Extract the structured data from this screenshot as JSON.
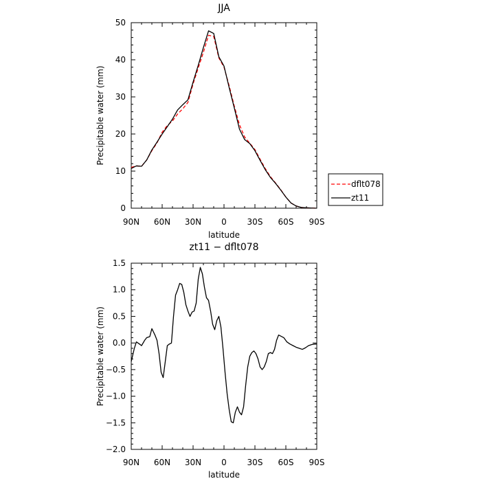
{
  "chart_data": [
    {
      "type": "line",
      "title": "JJA",
      "xlabel": "latitude",
      "ylabel": "Precipitable water (mm)",
      "xlim": [
        90,
        -90
      ],
      "ylim": [
        0,
        50
      ],
      "x_tick_values": [
        90,
        60,
        30,
        0,
        -30,
        -60,
        -90
      ],
      "x_tick_labels": [
        "90N",
        "60N",
        "30N",
        "0",
        "30S",
        "60S",
        "90S"
      ],
      "y_tick_values": [
        0,
        10,
        20,
        30,
        40,
        50
      ],
      "y_tick_labels": [
        "0",
        "10",
        "20",
        "30",
        "40",
        "50"
      ],
      "legend": "outside-right",
      "series": [
        {
          "name": "dflt078",
          "color": "#ff0000",
          "style": "dashed",
          "x": [
            90,
            85,
            80,
            75,
            70,
            65,
            60,
            55,
            50,
            45,
            40,
            35,
            30,
            25,
            20,
            15,
            10,
            5,
            0,
            -5,
            -10,
            -15,
            -20,
            -25,
            -30,
            -35,
            -40,
            -45,
            -50,
            -55,
            -60,
            -65,
            -70,
            -75,
            -80,
            -85,
            -90
          ],
          "y": [
            11.0,
            11.4,
            11.3,
            13.0,
            15.5,
            17.6,
            20.5,
            22.3,
            23.5,
            25.4,
            26.8,
            28.5,
            33.5,
            37.8,
            42.0,
            46.6,
            46.3,
            40.5,
            38.0,
            33.0,
            27.5,
            22.5,
            19.2,
            17.5,
            15.8,
            13.2,
            10.7,
            8.5,
            6.8,
            5.0,
            3.0,
            1.4,
            0.6,
            0.2,
            0.1,
            0.05,
            0.0
          ]
        },
        {
          "name": "zt11",
          "color": "#000000",
          "style": "solid",
          "x": [
            90,
            85,
            80,
            75,
            70,
            65,
            60,
            55,
            50,
            45,
            40,
            35,
            30,
            25,
            20,
            15,
            10,
            5,
            0,
            -5,
            -10,
            -15,
            -20,
            -25,
            -30,
            -35,
            -40,
            -45,
            -50,
            -55,
            -60,
            -65,
            -70,
            -75,
            -80,
            -85,
            -90
          ],
          "y": [
            10.7,
            11.4,
            11.3,
            13.0,
            15.7,
            17.8,
            20.0,
            22.0,
            24.0,
            26.5,
            27.9,
            29.2,
            34.0,
            38.5,
            43.3,
            47.8,
            47.1,
            40.8,
            38.3,
            32.5,
            27.0,
            21.3,
            18.5,
            17.4,
            15.5,
            12.9,
            10.4,
            8.3,
            6.7,
            4.9,
            3.0,
            1.4,
            0.6,
            0.2,
            0.1,
            0.05,
            0.0
          ]
        }
      ]
    },
    {
      "type": "line",
      "title": "zt11 − dflt078",
      "xlabel": "latitude",
      "ylabel": "Precipitable water (mm)",
      "xlim": [
        90,
        -90
      ],
      "ylim": [
        -2.0,
        1.5
      ],
      "x_tick_values": [
        90,
        60,
        30,
        0,
        -30,
        -60,
        -90
      ],
      "x_tick_labels": [
        "90N",
        "60N",
        "30N",
        "0",
        "30S",
        "60S",
        "90S"
      ],
      "y_tick_values": [
        -2.0,
        -1.5,
        -1.0,
        -0.5,
        0.0,
        0.5,
        1.0,
        1.5
      ],
      "y_tick_labels": [
        "−2.0",
        "−1.5",
        "−1.0",
        "−0.5",
        "0.0",
        "0.5",
        "1.0",
        "1.5"
      ],
      "series": [
        {
          "name": "",
          "color": "#000000",
          "style": "solid",
          "x": [
            90,
            87,
            85,
            82,
            80,
            77,
            75,
            72,
            70,
            67,
            65,
            63,
            61,
            59,
            57,
            55,
            53,
            51,
            49,
            47,
            45,
            43,
            41,
            39,
            37,
            35,
            33,
            31,
            29,
            27,
            25,
            23,
            21,
            19,
            17,
            15,
            13,
            11,
            9,
            7,
            5,
            3,
            1,
            -1,
            -3,
            -5,
            -7,
            -9,
            -11,
            -13,
            -15,
            -17,
            -19,
            -21,
            -23,
            -25,
            -27,
            -29,
            -31,
            -33,
            -35,
            -37,
            -39,
            -41,
            -43,
            -45,
            -47,
            -49,
            -51,
            -53,
            -55,
            -58,
            -61,
            -64,
            -67,
            -70,
            -73,
            -76,
            -79,
            -82,
            -85,
            -88,
            -90
          ],
          "y": [
            -0.35,
            -0.1,
            0.02,
            -0.02,
            -0.05,
            0.05,
            0.1,
            0.12,
            0.27,
            0.15,
            0.05,
            -0.2,
            -0.55,
            -0.65,
            -0.35,
            -0.05,
            -0.02,
            0.0,
            0.5,
            0.9,
            1.0,
            1.12,
            1.1,
            0.95,
            0.72,
            0.6,
            0.5,
            0.58,
            0.6,
            0.75,
            1.2,
            1.42,
            1.3,
            1.05,
            0.85,
            0.8,
            0.6,
            0.35,
            0.25,
            0.42,
            0.5,
            0.3,
            -0.1,
            -0.55,
            -0.95,
            -1.25,
            -1.48,
            -1.5,
            -1.3,
            -1.2,
            -1.3,
            -1.35,
            -1.2,
            -0.8,
            -0.45,
            -0.25,
            -0.18,
            -0.15,
            -0.2,
            -0.3,
            -0.45,
            -0.5,
            -0.45,
            -0.35,
            -0.2,
            -0.18,
            -0.2,
            -0.12,
            0.05,
            0.15,
            0.13,
            0.1,
            0.02,
            -0.02,
            -0.05,
            -0.08,
            -0.1,
            -0.12,
            -0.09,
            -0.05,
            -0.03,
            -0.02,
            -0.02
          ]
        }
      ]
    }
  ]
}
